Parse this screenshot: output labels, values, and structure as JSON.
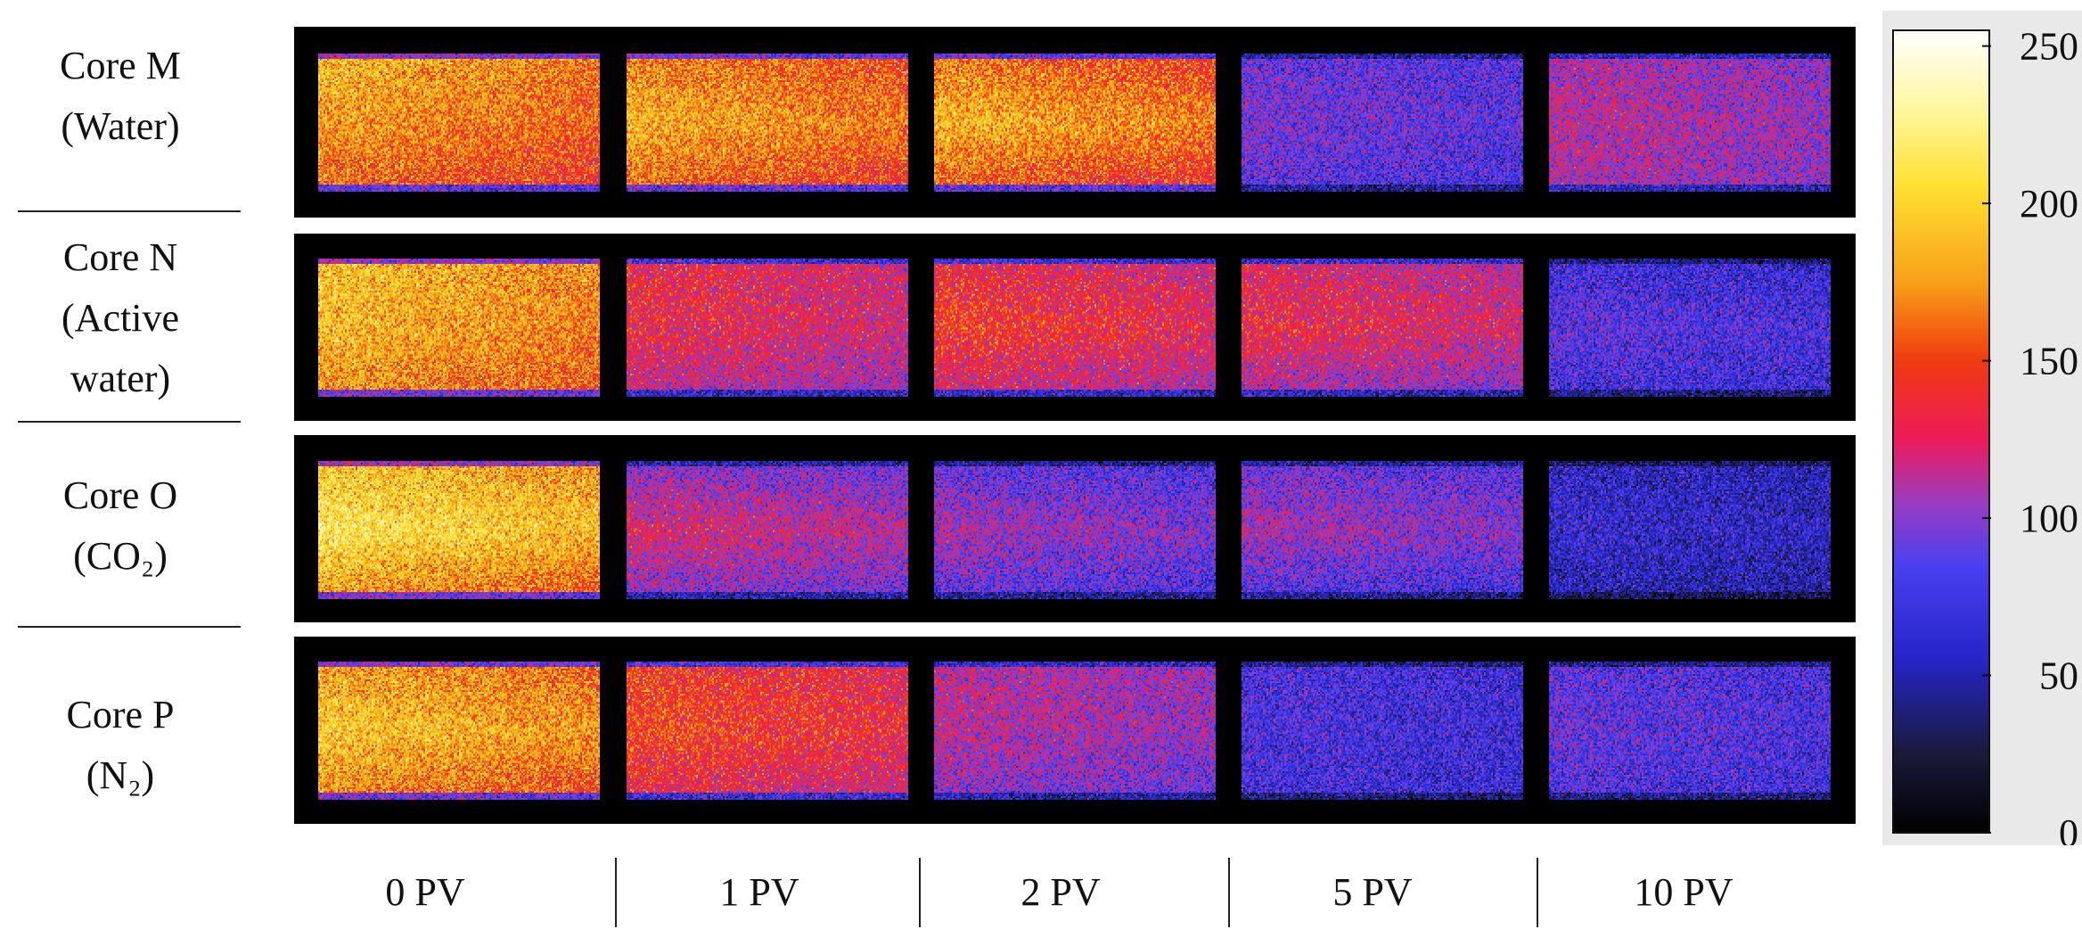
{
  "rows": [
    {
      "label1": "Core M",
      "label2": "(Water)",
      "label3": ""
    },
    {
      "label1": "Core N",
      "label2": "(Active",
      "label3": "water)"
    },
    {
      "label1": "Core O",
      "label2": "(CO₂)",
      "label3": ""
    },
    {
      "label1": "Core P",
      "label2": "(N₂)",
      "label3": ""
    }
  ],
  "columns": [
    "0 PV",
    "1 PV",
    "2 PV",
    "5 PV",
    "10 PV"
  ],
  "chart_data": {
    "type": "heatmap",
    "categories": [
      "0 PV",
      "1 PV",
      "2 PV",
      "5 PV",
      "10 PV"
    ],
    "series": [
      {
        "name": "Core M (Water)",
        "values": [
          180,
          170,
          165,
          95,
          110
        ]
      },
      {
        "name": "Core N (Active water)",
        "values": [
          185,
          130,
          135,
          120,
          75
        ]
      },
      {
        "name": "Core O (CO2)",
        "values": [
          195,
          110,
          95,
          95,
          60
        ]
      },
      {
        "name": "Core P (N2)",
        "values": [
          180,
          140,
          110,
          75,
          80
        ]
      }
    ],
    "colorbar": {
      "min": 0,
      "max": 255,
      "ticks": [
        0,
        50,
        100,
        150,
        200,
        250
      ]
    },
    "colormap": [
      {
        "v": 0,
        "color": "#000000"
      },
      {
        "v": 25,
        "color": "#1a1a3c"
      },
      {
        "v": 55,
        "color": "#2525c8"
      },
      {
        "v": 85,
        "color": "#4a40f0"
      },
      {
        "v": 105,
        "color": "#9a3cc0"
      },
      {
        "v": 125,
        "color": "#ee1a5a"
      },
      {
        "v": 150,
        "color": "#f03a10"
      },
      {
        "v": 175,
        "color": "#f8a018"
      },
      {
        "v": 205,
        "color": "#ffe030"
      },
      {
        "v": 230,
        "color": "#fff6a0"
      },
      {
        "v": 255,
        "color": "#ffffff"
      }
    ],
    "profiles": [
      [
        [
          1.0,
          0.95,
          0.85
        ],
        [
          0.95,
          1.05,
          0.9
        ],
        [
          0.95,
          1.1,
          0.9
        ],
        [
          0.9,
          0.95,
          0.85
        ],
        [
          0.95,
          1.0,
          0.95
        ]
      ],
      [
        [
          1.0,
          0.98,
          0.9
        ],
        [
          1.0,
          1.0,
          0.85
        ],
        [
          0.95,
          1.05,
          0.85
        ],
        [
          1.0,
          1.1,
          0.85
        ],
        [
          0.9,
          1.1,
          0.95
        ]
      ],
      [
        [
          0.95,
          1.05,
          0.85
        ],
        [
          0.85,
          1.1,
          0.85
        ],
        [
          0.85,
          1.1,
          0.85
        ],
        [
          0.9,
          1.1,
          0.8
        ],
        [
          0.95,
          1.05,
          0.85
        ]
      ],
      [
        [
          0.95,
          1.05,
          0.9
        ],
        [
          1.0,
          1.05,
          0.9
        ],
        [
          1.0,
          1.0,
          0.85
        ],
        [
          1.0,
          1.0,
          0.95
        ],
        [
          1.0,
          1.05,
          0.95
        ]
      ]
    ]
  }
}
